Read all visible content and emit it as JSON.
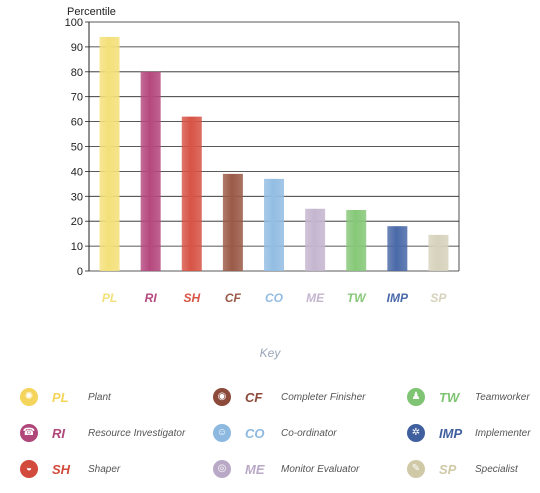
{
  "chart_data": {
    "type": "bar",
    "ylabel": "Percentile",
    "ylim": [
      0,
      100
    ],
    "yticks": [
      0,
      10,
      20,
      30,
      40,
      50,
      60,
      70,
      80,
      90,
      100
    ],
    "grid": true,
    "categories": [
      "PL",
      "RI",
      "SH",
      "CF",
      "CO",
      "ME",
      "TW",
      "IMP",
      "SP"
    ],
    "values": [
      94,
      80,
      62,
      39,
      37,
      25,
      24.5,
      18,
      14.5
    ],
    "colors": [
      "#f4e07a",
      "#b5487e",
      "#d75446",
      "#9b5a47",
      "#93bde3",
      "#c5b6cf",
      "#86c878",
      "#4a69a8",
      "#d6d2bc"
    ]
  },
  "key": {
    "title": "Key",
    "items": [
      {
        "code": "PL",
        "name": "Plant",
        "color": "#f4d45a",
        "icon": "lightbulb-icon",
        "glyph": "✺"
      },
      {
        "code": "RI",
        "name": "Resource Investigator",
        "color": "#b0467a",
        "icon": "phone-icon",
        "glyph": "☎"
      },
      {
        "code": "SH",
        "name": "Shaper",
        "color": "#d24a3c",
        "icon": "ball-icon",
        "glyph": "◒"
      },
      {
        "code": "CF",
        "name": "Completer Finisher",
        "color": "#8c4a3a",
        "icon": "magnifier-icon",
        "glyph": "◉"
      },
      {
        "code": "CO",
        "name": "Co-ordinator",
        "color": "#8db9e0",
        "icon": "person-icon",
        "glyph": "☺"
      },
      {
        "code": "ME",
        "name": "Monitor Evaluator",
        "color": "#b9a9c6",
        "icon": "eye-icon",
        "glyph": "◎"
      },
      {
        "code": "TW",
        "name": "Teamworker",
        "color": "#7fc472",
        "icon": "people-icon",
        "glyph": "♟"
      },
      {
        "code": "IMP",
        "name": "Implementer",
        "color": "#3f5f9f",
        "icon": "gear-icon",
        "glyph": "✲"
      },
      {
        "code": "SP",
        "name": "Specialist",
        "color": "#cfc9a8",
        "icon": "tool-icon",
        "glyph": "✎"
      }
    ]
  }
}
